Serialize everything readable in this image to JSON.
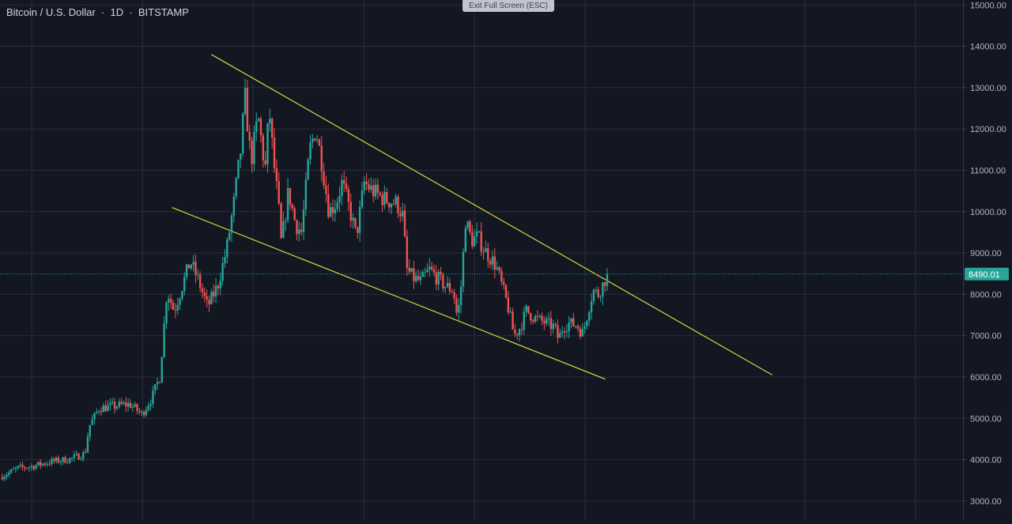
{
  "legend": {
    "symbol": "Bitcoin / U.S. Dollar",
    "interval": "1D",
    "exchange": "BITSTAMP"
  },
  "exit_fullscreen_label": "Exit Full Screen (ESC)",
  "colors": {
    "background": "#131722",
    "grid": "#2a2e39",
    "axis_text": "#b2b5be",
    "up": "#26a69a",
    "down": "#ef5350",
    "trendline": "#d4d640",
    "price_line": "#26a69a",
    "price_label_bg": "#26a69a",
    "price_label_text": "#ffffff"
  },
  "chart_data": {
    "type": "candlestick",
    "y_axis": {
      "ticks": [
        "15000.00",
        "14000.00",
        "13000.00",
        "12000.00",
        "11000.00",
        "10000.00",
        "9000.00",
        "8000.00",
        "7000.00",
        "6000.00",
        "5000.00",
        "4000.00",
        "3000.00"
      ],
      "range": [
        2540,
        15120
      ],
      "position": "right"
    },
    "last_price": "8490.01",
    "trendlines": [
      {
        "name": "upper",
        "points": [
          [
            0.209,
            13800
          ],
          [
            0.763,
            6050
          ]
        ]
      },
      {
        "name": "lower",
        "points": [
          [
            0.17,
            10100
          ],
          [
            0.598,
            5950
          ]
        ]
      }
    ],
    "anchors": [
      [
        0.0,
        3580
      ],
      [
        0.012,
        3720
      ],
      [
        0.018,
        3800
      ],
      [
        0.03,
        3830
      ],
      [
        0.05,
        3950
      ],
      [
        0.07,
        4020
      ],
      [
        0.084,
        4150
      ],
      [
        0.088,
        4800
      ],
      [
        0.098,
        5250
      ],
      [
        0.115,
        5300
      ],
      [
        0.128,
        5350
      ],
      [
        0.14,
        5100
      ],
      [
        0.15,
        5500
      ],
      [
        0.158,
        6000
      ],
      [
        0.165,
        8100
      ],
      [
        0.172,
        7600
      ],
      [
        0.18,
        8200
      ],
      [
        0.188,
        8800
      ],
      [
        0.195,
        8400
      ],
      [
        0.205,
        7700
      ],
      [
        0.215,
        8200
      ],
      [
        0.224,
        9100
      ],
      [
        0.231,
        10200
      ],
      [
        0.238,
        11500
      ],
      [
        0.242,
        12800
      ],
      [
        0.248,
        11200
      ],
      [
        0.255,
        12300
      ],
      [
        0.262,
        11000
      ],
      [
        0.266,
        12500
      ],
      [
        0.27,
        11300
      ],
      [
        0.275,
        10200
      ],
      [
        0.278,
        9200
      ],
      [
        0.285,
        10500
      ],
      [
        0.292,
        9700
      ],
      [
        0.298,
        9500
      ],
      [
        0.306,
        11500
      ],
      [
        0.312,
        12000
      ],
      [
        0.318,
        11200
      ],
      [
        0.325,
        10000
      ],
      [
        0.332,
        10200
      ],
      [
        0.338,
        10700
      ],
      [
        0.346,
        10000
      ],
      [
        0.352,
        9400
      ],
      [
        0.36,
        10700
      ],
      [
        0.368,
        10500
      ],
      [
        0.38,
        10300
      ],
      [
        0.392,
        10200
      ],
      [
        0.398,
        9900
      ],
      [
        0.402,
        8600
      ],
      [
        0.408,
        8400
      ],
      [
        0.416,
        8300
      ],
      [
        0.424,
        8600
      ],
      [
        0.432,
        8400
      ],
      [
        0.44,
        8200
      ],
      [
        0.448,
        8100
      ],
      [
        0.452,
        7400
      ],
      [
        0.456,
        8300
      ],
      [
        0.46,
        9800
      ],
      [
        0.466,
        9300
      ],
      [
        0.472,
        9400
      ],
      [
        0.478,
        9100
      ],
      [
        0.484,
        8900
      ],
      [
        0.49,
        8700
      ],
      [
        0.496,
        8200
      ],
      [
        0.502,
        7700
      ],
      [
        0.508,
        7000
      ],
      [
        0.514,
        7200
      ],
      [
        0.52,
        7600
      ],
      [
        0.53,
        7400
      ],
      [
        0.54,
        7300
      ],
      [
        0.548,
        7200
      ],
      [
        0.552,
        6900
      ],
      [
        0.556,
        7200
      ],
      [
        0.562,
        7300
      ],
      [
        0.57,
        7250
      ],
      [
        0.576,
        7050
      ],
      [
        0.582,
        7700
      ],
      [
        0.586,
        8100
      ],
      [
        0.591,
        8000
      ],
      [
        0.595,
        8200
      ],
      [
        0.6,
        8490.01
      ]
    ]
  }
}
